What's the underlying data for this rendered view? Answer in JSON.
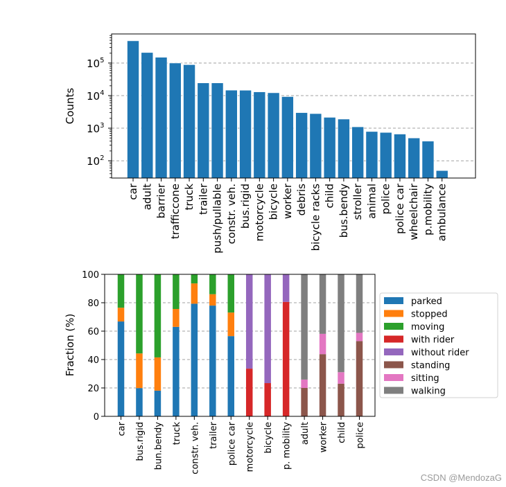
{
  "chart_data": [
    {
      "type": "bar",
      "scale": "log",
      "title": "",
      "xlabel": "",
      "ylabel": "Counts",
      "ylim": [
        29.5,
        780000
      ],
      "yticks": [
        100,
        1000,
        10000,
        100000
      ],
      "ytick_labels": [
        {
          "base": "10",
          "exp": "2"
        },
        {
          "base": "10",
          "exp": "3"
        },
        {
          "base": "10",
          "exp": "4"
        },
        {
          "base": "10",
          "exp": "5"
        }
      ],
      "grid": "y-major-dashed",
      "color": "#1f77b4",
      "categories": [
        "car",
        "adult",
        "barrier",
        "trafficcone",
        "truck",
        "trailer",
        "push/pullable",
        "constr. veh.",
        "bus.rigid",
        "motorcycle",
        "bicycle",
        "worker",
        "debris",
        "bicycle racks",
        "child",
        "bus.bendy",
        "stroller",
        "animal",
        "police",
        "police car",
        "wheelchair",
        "p.mobility",
        "ambulance"
      ],
      "values": [
        480000,
        210000,
        150000,
        100000,
        89000,
        24500,
        24500,
        14700,
        14600,
        13000,
        12200,
        9300,
        3000,
        2800,
        2150,
        1900,
        1100,
        790,
        740,
        660,
        500,
        400,
        50
      ]
    },
    {
      "type": "bar",
      "stacked": true,
      "title": "",
      "xlabel": "",
      "ylabel": "Fraction (%)",
      "ylim": [
        0,
        100
      ],
      "yticks": [
        0,
        20,
        40,
        60,
        80,
        100
      ],
      "grid": "y-major-dashed",
      "legend_position": "right",
      "categories": [
        "car",
        "bus.rigid",
        "bun.bendy",
        "truck",
        "constr. veh.",
        "trailer",
        "police car",
        "motorcycle",
        "bicycle",
        "p. mobility",
        "adult",
        "worker",
        "child",
        "police"
      ],
      "series": [
        {
          "name": "parked",
          "color": "#1f77b4",
          "values": [
            66.8,
            19.9,
            18.1,
            63.0,
            79.3,
            78.0,
            56.5,
            0,
            0,
            0,
            0,
            0,
            0,
            0
          ]
        },
        {
          "name": "stopped",
          "color": "#ff7f0e",
          "values": [
            9.7,
            24.4,
            23.4,
            12.6,
            14.3,
            8.0,
            16.6,
            0,
            0,
            0,
            0,
            0,
            0,
            0
          ]
        },
        {
          "name": "moving",
          "color": "#2ca02c",
          "values": [
            23.5,
            55.7,
            58.5,
            24.4,
            6.4,
            14.0,
            26.9,
            0,
            0,
            0,
            0,
            0,
            0,
            0
          ]
        },
        {
          "name": "with rider",
          "color": "#d62728",
          "values": [
            0,
            0,
            0,
            0,
            0,
            0,
            0,
            33.6,
            23.4,
            80.6,
            0,
            0,
            0,
            0
          ]
        },
        {
          "name": "without rider",
          "color": "#9467bd",
          "values": [
            0,
            0,
            0,
            0,
            0,
            0,
            0,
            66.4,
            76.6,
            19.4,
            0,
            0,
            0,
            0
          ]
        },
        {
          "name": "standing",
          "color": "#8c564b",
          "values": [
            0,
            0,
            0,
            0,
            0,
            0,
            0,
            0,
            0,
            0,
            20.0,
            43.8,
            23.0,
            53.0
          ]
        },
        {
          "name": "sitting",
          "color": "#e377c2",
          "values": [
            0,
            0,
            0,
            0,
            0,
            0,
            0,
            0,
            0,
            0,
            5.9,
            14.3,
            8.1,
            5.8
          ]
        },
        {
          "name": "walking",
          "color": "#7f7f7f",
          "values": [
            0,
            0,
            0,
            0,
            0,
            0,
            0,
            0,
            0,
            0,
            74.1,
            41.9,
            68.9,
            41.2
          ]
        }
      ]
    }
  ],
  "watermark": "CSDN @MendozaG"
}
